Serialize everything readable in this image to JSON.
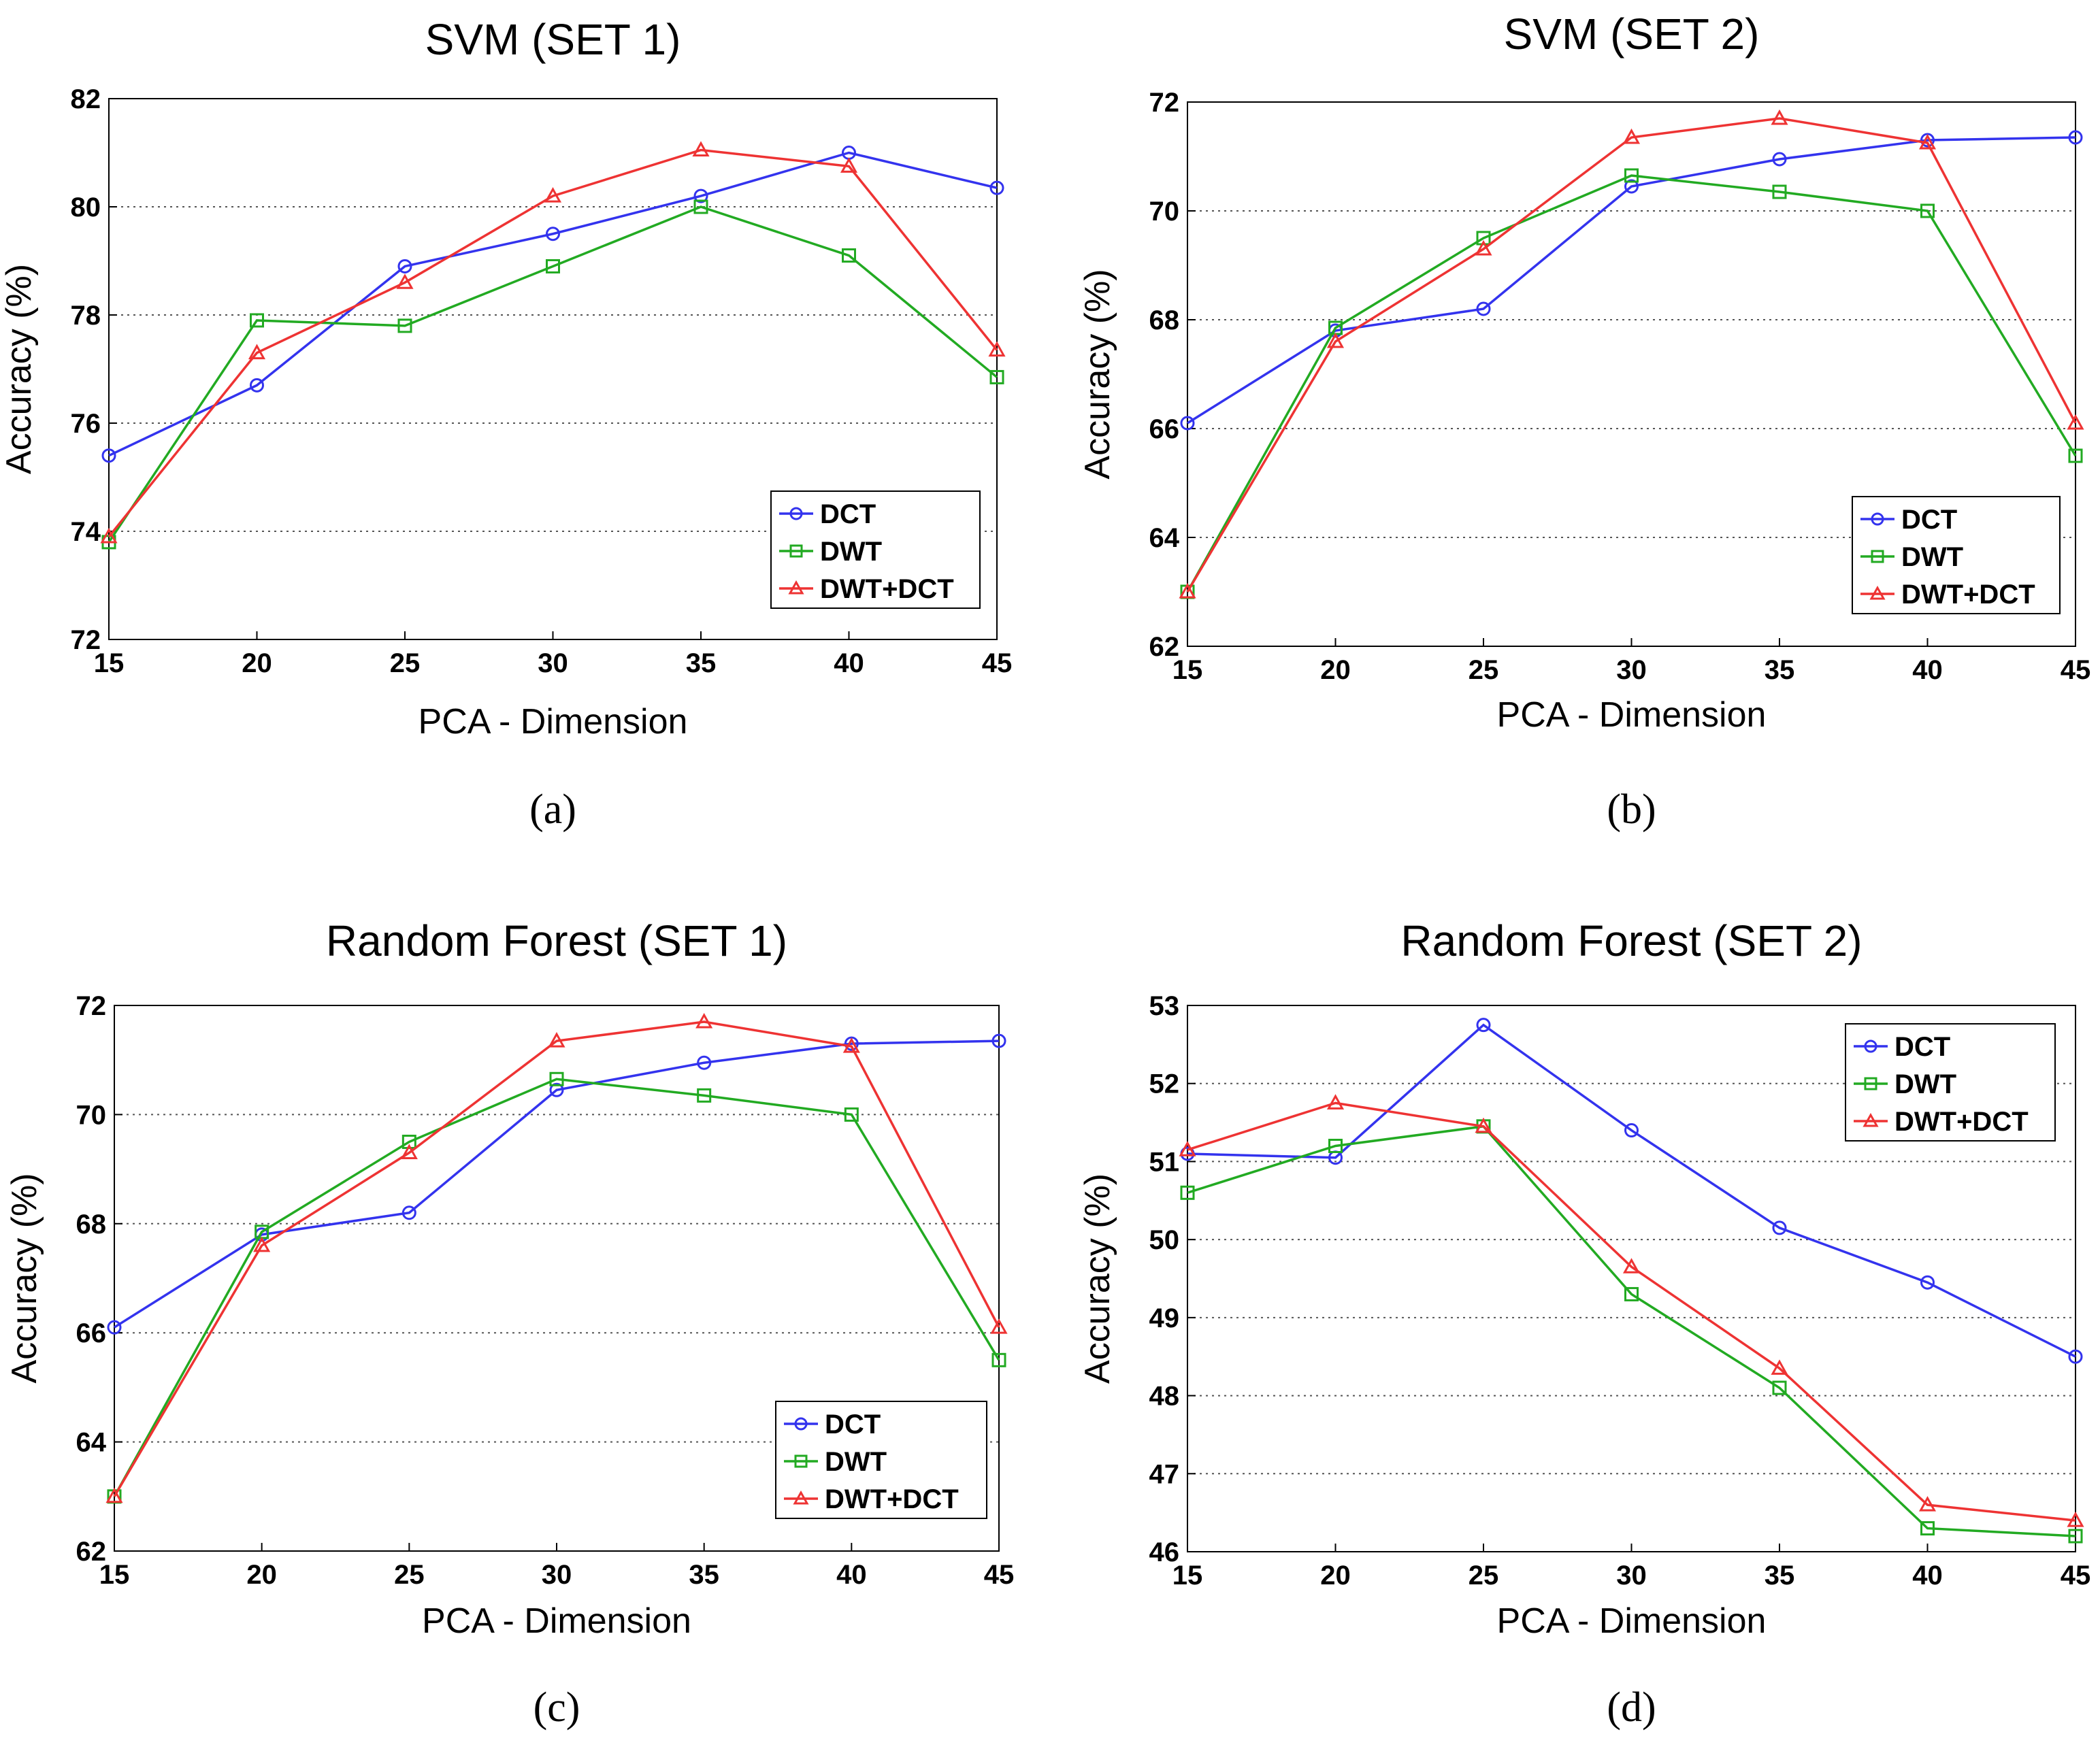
{
  "colors": {
    "DCT": "#3333ee",
    "DWT": "#22aa22",
    "DWT+DCT": "#ee3333"
  },
  "chart_data": [
    {
      "id": "a",
      "type": "line",
      "title": "SVM (SET 1)",
      "xlabel": "PCA - Dimension",
      "ylabel": "Accuracy (%)",
      "caption": "(a)",
      "x": [
        15,
        20,
        25,
        30,
        35,
        40,
        45
      ],
      "xlim": [
        15,
        45
      ],
      "ylim": [
        72,
        82
      ],
      "yticks": [
        72,
        74,
        76,
        78,
        80,
        82
      ],
      "legend_position": "bottom-right",
      "series": [
        {
          "name": "DCT",
          "marker": "circle",
          "values": [
            75.4,
            76.7,
            78.9,
            79.5,
            80.2,
            81.0,
            80.35
          ]
        },
        {
          "name": "DWT",
          "marker": "square",
          "values": [
            73.8,
            77.9,
            77.8,
            78.9,
            80.0,
            79.1,
            76.85
          ]
        },
        {
          "name": "DWT+DCT",
          "marker": "triangle",
          "values": [
            73.9,
            77.3,
            78.6,
            80.2,
            81.05,
            80.75,
            77.35
          ]
        }
      ]
    },
    {
      "id": "b",
      "type": "line",
      "title": "SVM (SET 2)",
      "xlabel": "PCA - Dimension",
      "ylabel": "Accuracy (%)",
      "caption": "(b)",
      "x": [
        15,
        20,
        25,
        30,
        35,
        40,
        45
      ],
      "xlim": [
        15,
        45
      ],
      "ylim": [
        62,
        72
      ],
      "yticks": [
        62,
        64,
        66,
        68,
        70,
        72
      ],
      "legend_position": "bottom-right",
      "series": [
        {
          "name": "DCT",
          "marker": "circle",
          "values": [
            66.1,
            67.8,
            68.2,
            70.45,
            70.95,
            71.3,
            71.35
          ]
        },
        {
          "name": "DWT",
          "marker": "square",
          "values": [
            63.0,
            67.85,
            69.5,
            70.65,
            70.35,
            70.0,
            65.5
          ]
        },
        {
          "name": "DWT+DCT",
          "marker": "triangle",
          "values": [
            63.0,
            67.6,
            69.3,
            71.35,
            71.7,
            71.25,
            66.1
          ]
        }
      ]
    },
    {
      "id": "c",
      "type": "line",
      "title": "Random Forest (SET 1)",
      "xlabel": "PCA - Dimension",
      "ylabel": "Accuracy (%)",
      "caption": "(c)",
      "x": [
        15,
        20,
        25,
        30,
        35,
        40,
        45
      ],
      "xlim": [
        15,
        45
      ],
      "ylim": [
        62,
        72
      ],
      "yticks": [
        62,
        64,
        66,
        68,
        70,
        72
      ],
      "legend_position": "bottom-right",
      "series": [
        {
          "name": "DCT",
          "marker": "circle",
          "values": [
            66.1,
            67.8,
            68.2,
            70.45,
            70.95,
            71.3,
            71.35
          ]
        },
        {
          "name": "DWT",
          "marker": "square",
          "values": [
            63.0,
            67.85,
            69.5,
            70.65,
            70.35,
            70.0,
            65.5
          ]
        },
        {
          "name": "DWT+DCT",
          "marker": "triangle",
          "values": [
            63.0,
            67.6,
            69.3,
            71.35,
            71.7,
            71.25,
            66.1
          ]
        }
      ]
    },
    {
      "id": "d",
      "type": "line",
      "title": "Random Forest (SET 2)",
      "xlabel": "PCA - Dimension",
      "ylabel": "Accuracy (%)",
      "caption": "(d)",
      "x": [
        15,
        20,
        25,
        30,
        35,
        40,
        45
      ],
      "xlim": [
        15,
        45
      ],
      "ylim": [
        46,
        53
      ],
      "yticks": [
        46,
        47,
        48,
        49,
        50,
        51,
        52,
        53
      ],
      "legend_position": "top-right",
      "series": [
        {
          "name": "DCT",
          "marker": "circle",
          "values": [
            51.1,
            51.05,
            52.75,
            51.4,
            50.15,
            49.45,
            48.5
          ]
        },
        {
          "name": "DWT",
          "marker": "square",
          "values": [
            50.6,
            51.2,
            51.45,
            49.3,
            48.1,
            46.3,
            46.2
          ]
        },
        {
          "name": "DWT+DCT",
          "marker": "triangle",
          "values": [
            51.15,
            51.75,
            51.45,
            49.65,
            48.35,
            46.6,
            46.4
          ]
        }
      ]
    }
  ]
}
